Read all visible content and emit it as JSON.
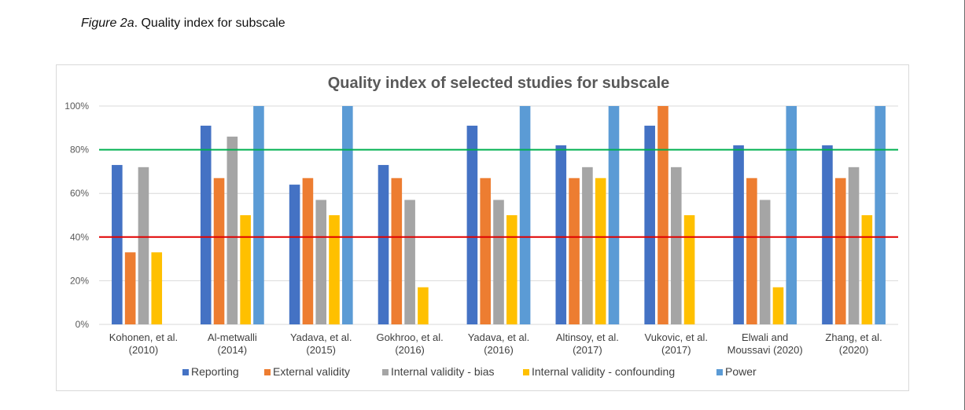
{
  "caption": {
    "figure_label": "Figure 2a",
    "text": ". Quality index for subscale"
  },
  "chart_data": {
    "type": "bar",
    "title": "Quality index of selected studies for subscale",
    "xlabel": "",
    "ylabel": "",
    "ylim": [
      0,
      100
    ],
    "y_ticks": [
      "0%",
      "20%",
      "40%",
      "60%",
      "80%",
      "100%"
    ],
    "grid": true,
    "legend_position": "bottom",
    "categories": [
      [
        "Kohonen, et al.",
        "(2010)"
      ],
      [
        "Al-metwalli",
        "(2014)"
      ],
      [
        "Yadava, et al.",
        "(2015)"
      ],
      [
        "Gokhroo, et al.",
        "(2016)"
      ],
      [
        "Yadava, et al.",
        "(2016)"
      ],
      [
        "Altinsoy, et al.",
        "(2017)"
      ],
      [
        "Vukovic, et al.",
        "(2017)"
      ],
      [
        "Elwali and",
        "Moussavi (2020)"
      ],
      [
        "Zhang, et al.",
        "(2020)"
      ]
    ],
    "series": [
      {
        "name": "Reporting",
        "color": "#4472c4",
        "values": [
          73,
          91,
          64,
          73,
          91,
          82,
          91,
          82,
          82
        ]
      },
      {
        "name": "External validity",
        "color": "#ed7d31",
        "values": [
          33,
          67,
          67,
          67,
          67,
          67,
          100,
          67,
          67
        ]
      },
      {
        "name": "Internal validity - bias",
        "color": "#a5a5a5",
        "values": [
          72,
          86,
          57,
          57,
          57,
          72,
          72,
          57,
          72
        ]
      },
      {
        "name": "Internal validity - confounding",
        "color": "#ffc000",
        "values": [
          33,
          50,
          50,
          17,
          50,
          67,
          50,
          17,
          50
        ]
      },
      {
        "name": "Power",
        "color": "#5b9bd5",
        "values": [
          0,
          100,
          100,
          0,
          100,
          100,
          0,
          100,
          100
        ]
      }
    ],
    "reference_lines": [
      {
        "value": 80,
        "color": "#00b050"
      },
      {
        "value": 40,
        "color": "#e00000"
      }
    ]
  }
}
